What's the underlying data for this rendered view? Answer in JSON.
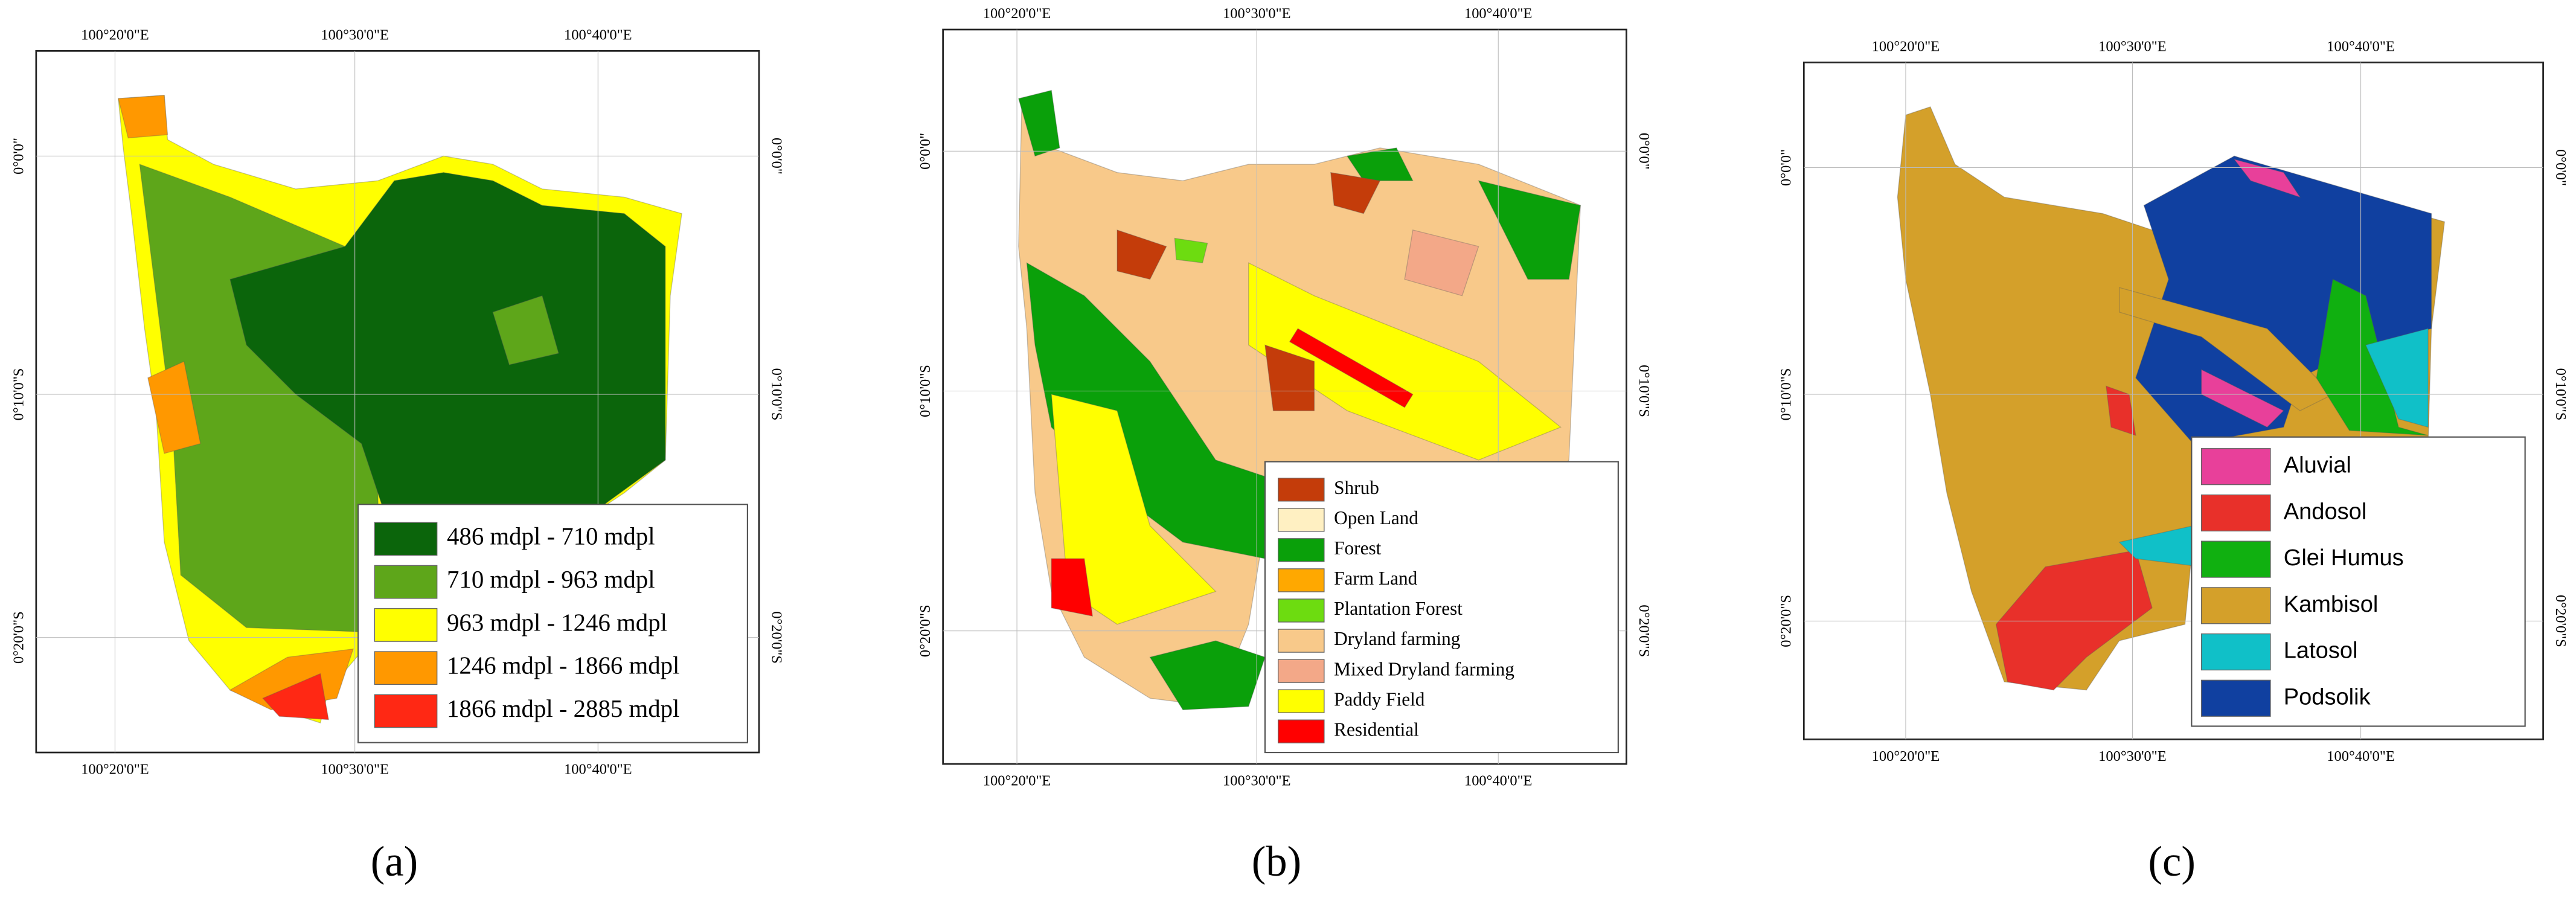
{
  "maps": [
    {
      "panel": "(a)",
      "top_labels": [
        "100°20'0\"E",
        "100°30'0\"E",
        "100°40'0\"E"
      ],
      "bottom_labels": [
        "100°20'0\"E",
        "100°30'0\"E",
        "100°40'0\"E"
      ],
      "left_labels": [
        "0°0'0\"",
        "0°10'0\"S",
        "0°20'0\"S"
      ],
      "right_labels": [
        "0°0'0\"",
        "0°10'0\"S",
        "0°20'0\"S"
      ],
      "legend": [
        {
          "label": "486 mdpl - 710 mdpl",
          "color": "#0b650b"
        },
        {
          "label": "710 mdpl - 963 mdpl",
          "color": "#5ea61a"
        },
        {
          "label": "963 mdpl - 1246 mdpl",
          "color": "#ffff00"
        },
        {
          "label": "1246 mdpl - 1866 mdpl",
          "color": "#ff9800"
        },
        {
          "label": "1866 mdpl - 2885 mdpl",
          "color": "#ff2814"
        }
      ]
    },
    {
      "panel": "(b)",
      "top_labels": [
        "100°20'0\"E",
        "100°30'0\"E",
        "100°40'0\"E"
      ],
      "bottom_labels": [
        "100°20'0\"E",
        "100°30'0\"E",
        "100°40'0\"E"
      ],
      "left_labels": [
        "0°0'0\"",
        "0°10'0\"S",
        "0°20'0\"S"
      ],
      "right_labels": [
        "0°0'0\"",
        "0°10'0\"S",
        "0°20'0\"S"
      ],
      "legend": [
        {
          "label": "Shrub",
          "color": "#c43c0a"
        },
        {
          "label": "Open Land",
          "color": "#fff0c2"
        },
        {
          "label": "Forest",
          "color": "#0aa00a"
        },
        {
          "label": "Farm Land",
          "color": "#ffa800"
        },
        {
          "label": "Plantation Forest",
          "color": "#6ddc10"
        },
        {
          "label": "Dryland farming",
          "color": "#f8c98a"
        },
        {
          "label": "Mixed Dryland farming",
          "color": "#f3a888"
        },
        {
          "label": "Paddy Field",
          "color": "#ffff00"
        },
        {
          "label": "Residential",
          "color": "#ff0000"
        }
      ]
    },
    {
      "panel": "(c)",
      "top_labels": [
        "100°20'0\"E",
        "100°30'0\"E",
        "100°40'0\"E"
      ],
      "bottom_labels": [
        "100°20'0\"E",
        "100°30'0\"E",
        "100°40'0\"E"
      ],
      "left_labels": [
        "0°0'0\"",
        "0°10'0\"S",
        "0°20'0\"S"
      ],
      "right_labels": [
        "0°0'0\"",
        "0°10'0\"S",
        "0°20'0\"S"
      ],
      "legend": [
        {
          "label": "Aluvial",
          "color": "#e8409a"
        },
        {
          "label": "Andosol",
          "color": "#e8302a"
        },
        {
          "label": "Glei Humus",
          "color": "#10b010"
        },
        {
          "label": "Kambisol",
          "color": "#d4a02a"
        },
        {
          "label": "Latosol",
          "color": "#10c0c8"
        },
        {
          "label": "Podsolik",
          "color": "#1040a0"
        }
      ]
    }
  ]
}
